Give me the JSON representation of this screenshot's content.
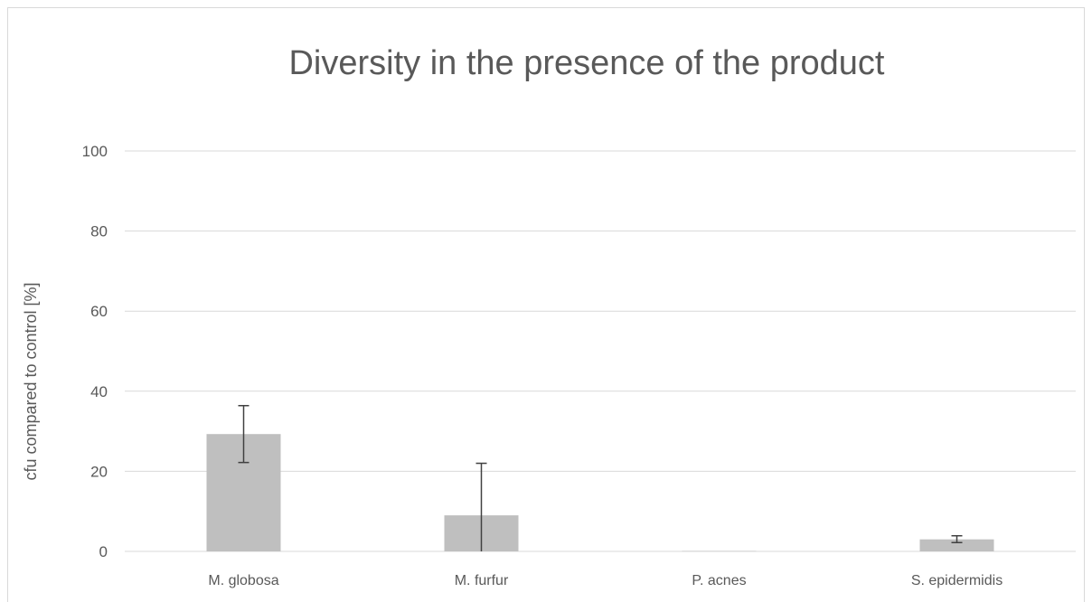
{
  "chart_data": {
    "type": "bar",
    "title": "Diversity in the presence of the product",
    "xlabel": "",
    "ylabel": "cfu compared to control [%]",
    "ylim": [
      0,
      100
    ],
    "yticks": [
      0,
      20,
      40,
      60,
      80,
      100
    ],
    "categories": [
      "M. globosa",
      "M. furfur",
      "P. acnes",
      "S. epidermidis"
    ],
    "series": [
      {
        "values": [
          29.3,
          9.0,
          0.1,
          3.0
        ],
        "error_low": [
          22.2,
          0,
          0,
          2.2
        ],
        "error_high": [
          36.4,
          22.0,
          0,
          3.9
        ]
      }
    ],
    "grid": true,
    "legend": "none",
    "colors": {
      "bar": "#bfbfbf",
      "error_bar": "#404040",
      "grid": "#d9d9d9",
      "text": "#595959"
    }
  }
}
